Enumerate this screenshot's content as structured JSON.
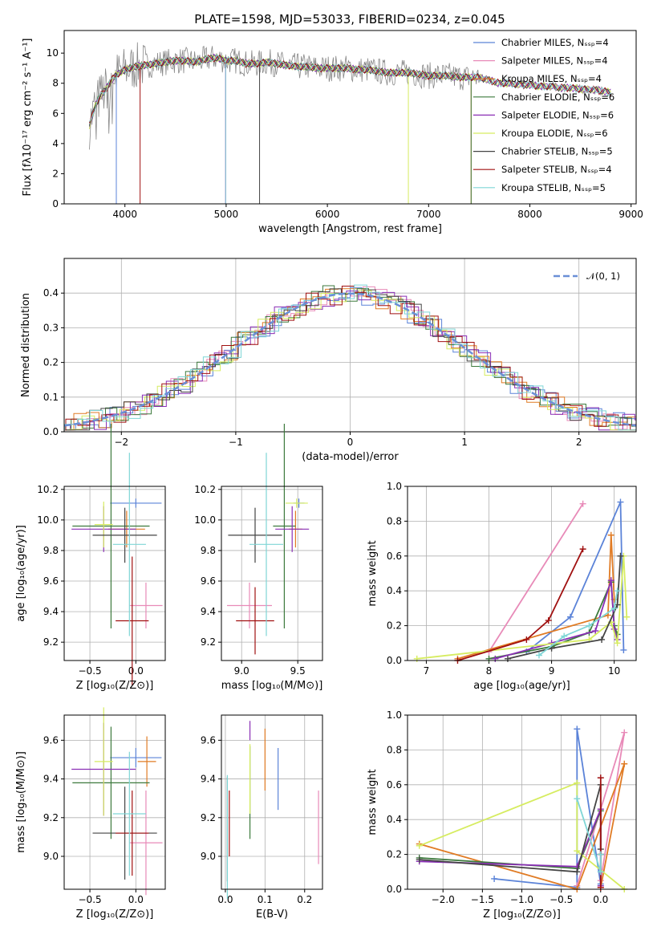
{
  "title": "PLATE=1598, MJD=53033, FIBERID=0234, z=0.045",
  "colors": [
    "#5b83d8",
    "#e88ab8",
    "#e07b24",
    "#3d7a3d",
    "#8a2fb5",
    "#d6ec60",
    "#444444",
    "#a01010",
    "#7fd6d6"
  ],
  "chart_data": [
    {
      "id": "spectrum",
      "type": "line",
      "xlabel": "wavelength [Angstrom, rest frame]",
      "ylabel": "Flux [fλ10⁻¹⁷ erg cm⁻² s⁻¹ A⁻¹]",
      "xlim": [
        3400,
        9050
      ],
      "ylim": [
        0,
        11.5
      ],
      "xticks": [
        4000,
        5000,
        6000,
        7000,
        8000,
        9000
      ],
      "yticks": [
        0,
        2,
        4,
        6,
        8,
        10
      ],
      "grid": false,
      "legend_position": "right",
      "legend": [
        "Chabrier MILES, Nₛₛₚ=4",
        "Salpeter MILES, Nₛₛₚ=4",
        "Kroupa MILES, Nₛₛₚ=4",
        "Chabrier ELODIE, Nₛₛₚ=6",
        "Salpeter ELODIE, Nₛₛₚ=6",
        "Kroupa ELODIE, Nₛₛₚ=6",
        "Chabrier STELIB, Nₛₛₚ=5",
        "Salpeter STELIB, Nₛₛₚ=4",
        "Kroupa STELIB, Nₛₛₚ=5"
      ],
      "data_x": [
        3650,
        3700,
        3750,
        3800,
        3850,
        3900,
        3950,
        4000,
        4100,
        4200,
        4300,
        4400,
        4500,
        4600,
        4700,
        4800,
        4900,
        5000,
        5100,
        5200,
        5300,
        5400,
        5500,
        5600,
        5700,
        5800,
        5900,
        6000,
        6100,
        6200,
        6300,
        6400,
        6500,
        6600,
        6700,
        6800,
        6900,
        7000,
        7100,
        7200,
        7300,
        7400,
        7500,
        7600,
        7700,
        7800,
        7900,
        8000,
        8100,
        8200,
        8300,
        8400,
        8500,
        8600,
        8700,
        8800
      ],
      "data_y": [
        5.2,
        6.4,
        7.1,
        7.5,
        8.0,
        8.5,
        8.7,
        8.9,
        9.1,
        9.2,
        9.3,
        9.4,
        9.5,
        9.5,
        9.4,
        9.6,
        9.7,
        9.5,
        9.5,
        9.3,
        9.3,
        9.4,
        9.3,
        9.2,
        9.1,
        9.1,
        9.0,
        9.0,
        9.0,
        9.0,
        8.9,
        8.9,
        8.8,
        8.7,
        8.7,
        8.7,
        8.6,
        8.5,
        8.5,
        8.5,
        8.4,
        8.4,
        8.4,
        8.2,
        8.0,
        8.0,
        7.9,
        7.9,
        7.8,
        7.8,
        7.7,
        7.7,
        7.6,
        7.6,
        7.5,
        7.4
      ]
    },
    {
      "id": "residuals",
      "type": "bar",
      "xlabel": "(data-model)/error",
      "ylabel": "Normed distribution",
      "xlim": [
        -2.5,
        2.5
      ],
      "ylim": [
        0,
        0.5
      ],
      "xticks": [
        -2,
        -1,
        0,
        1,
        2
      ],
      "yticks": [
        0.0,
        0.1,
        0.2,
        0.3,
        0.4
      ],
      "grid": true,
      "legend": [
        "𝒩(0, 1)"
      ],
      "legend_position": "top-right"
    },
    {
      "id": "age-vs-Z",
      "type": "scatter",
      "xlabel": "Z [log₁₀(Z/Z⊙)]",
      "ylabel": "age  [log₁₀(age/yr)]",
      "xlim": [
        -0.78,
        0.32
      ],
      "ylim": [
        9.08,
        10.22
      ],
      "xticks": [
        -0.5,
        0.0
      ],
      "yticks": [
        9.2,
        9.4,
        9.6,
        9.8,
        10.0,
        10.2
      ],
      "grid": true,
      "points": [
        {
          "x": 0.0,
          "y": 10.11,
          "xerr": 0.28,
          "yerr": 0.03
        },
        {
          "x": 0.11,
          "y": 9.44,
          "xerr": 0.18,
          "yerr": 0.15
        },
        {
          "x": -0.1,
          "y": 9.94,
          "xerr": 0.2,
          "yerr": 0.12
        },
        {
          "x": -0.27,
          "y": 9.96,
          "xerr": 0.42,
          "yerr": 0.67
        },
        {
          "x": -0.35,
          "y": 9.94,
          "xerr": 0.35,
          "yerr": 0.15
        },
        {
          "x": -0.35,
          "y": 9.97,
          "xerr": 0.1,
          "yerr": 0.15
        },
        {
          "x": -0.12,
          "y": 9.9,
          "xerr": 0.35,
          "yerr": 0.18
        },
        {
          "x": -0.04,
          "y": 9.34,
          "xerr": 0.18,
          "yerr": 0.42
        },
        {
          "x": -0.07,
          "y": 9.84,
          "xerr": 0.18,
          "yerr": 0.6
        }
      ]
    },
    {
      "id": "age-vs-mass",
      "type": "scatter",
      "xlabel": "mass [log₁₀(M/M⊙)]",
      "ylabel": "",
      "xlim": [
        8.82,
        9.72
      ],
      "ylim": [
        9.08,
        10.22
      ],
      "xticks": [
        9.0,
        9.5
      ],
      "yticks": [
        9.2,
        9.4,
        9.6,
        9.8,
        10.0,
        10.2
      ],
      "grid": true,
      "points": [
        {
          "x": 9.51,
          "y": 10.11,
          "xerr": 0.05,
          "yerr": 0.03
        },
        {
          "x": 9.07,
          "y": 9.44,
          "xerr": 0.2,
          "yerr": 0.15
        },
        {
          "x": 9.48,
          "y": 9.94,
          "xerr": 0.06,
          "yerr": 0.12
        },
        {
          "x": 9.38,
          "y": 9.96,
          "xerr": 0.1,
          "yerr": 0.67
        },
        {
          "x": 9.45,
          "y": 9.94,
          "xerr": 0.15,
          "yerr": 0.15
        },
        {
          "x": 9.49,
          "y": 10.11,
          "xerr": 0.1,
          "yerr": 0.03
        },
        {
          "x": 9.12,
          "y": 9.9,
          "xerr": 0.24,
          "yerr": 0.18
        },
        {
          "x": 9.12,
          "y": 9.34,
          "xerr": 0.17,
          "yerr": 0.22
        },
        {
          "x": 9.22,
          "y": 9.84,
          "xerr": 0.15,
          "yerr": 0.6
        }
      ]
    },
    {
      "id": "mass-weight-vs-age",
      "type": "line",
      "xlabel": "age  [log₁₀(age/yr)]",
      "ylabel": "mass weight",
      "xlim": [
        6.7,
        10.35
      ],
      "ylim": [
        0,
        1.0
      ],
      "xticks": [
        7,
        8,
        9,
        10
      ],
      "yticks": [
        0.0,
        0.2,
        0.4,
        0.6,
        0.8,
        1.0
      ],
      "grid": true,
      "series": [
        {
          "x": [
            8.6,
            9.3,
            10.1,
            10.15
          ],
          "y": [
            0.05,
            0.25,
            0.91,
            0.06
          ]
        },
        {
          "x": [
            8.0,
            9.5
          ],
          "y": [
            0.05,
            0.9
          ]
        },
        {
          "x": [
            7.5,
            9.9,
            9.95,
            10.0
          ],
          "y": [
            0.01,
            0.26,
            0.72,
            0.35
          ]
        },
        {
          "x": [
            8.0,
            9.0,
            9.6,
            9.95,
            10.0,
            10.05
          ],
          "y": [
            0.01,
            0.08,
            0.16,
            0.45,
            0.2,
            0.15
          ]
        },
        {
          "x": [
            8.1,
            9.0,
            9.7,
            9.95,
            10.0,
            10.05
          ],
          "y": [
            0.01,
            0.1,
            0.17,
            0.46,
            0.18,
            0.12
          ]
        },
        {
          "x": [
            6.85,
            9.6,
            9.95,
            10.05,
            10.15,
            10.2
          ],
          "y": [
            0.01,
            0.12,
            0.22,
            0.1,
            0.6,
            0.25
          ]
        },
        {
          "x": [
            8.3,
            9.0,
            9.8,
            10.05,
            10.1
          ],
          "y": [
            0.01,
            0.07,
            0.12,
            0.32,
            0.6
          ]
        },
        {
          "x": [
            7.5,
            8.6,
            8.95,
            9.5
          ],
          "y": [
            0.0,
            0.12,
            0.23,
            0.64
          ]
        },
        {
          "x": [
            8.8,
            9.2,
            9.6,
            10.0,
            10.05
          ],
          "y": [
            0.03,
            0.14,
            0.2,
            0.3,
            0.4
          ]
        }
      ]
    },
    {
      "id": "mass-vs-Z",
      "type": "scatter",
      "xlabel": "Z [log₁₀(Z/Z⊙)]",
      "ylabel": "mass [log₁₀(M/M⊙)]",
      "xlim": [
        -0.78,
        0.32
      ],
      "ylim": [
        8.83,
        9.73
      ],
      "xticks": [
        -0.5,
        0.0
      ],
      "yticks": [
        9.0,
        9.2,
        9.4,
        9.6
      ],
      "grid": true,
      "points": [
        {
          "x": 0.0,
          "y": 9.51,
          "xerr": 0.28,
          "yerr": 0.05
        },
        {
          "x": 0.11,
          "y": 9.07,
          "xerr": 0.18,
          "yerr": 0.27
        },
        {
          "x": 0.12,
          "y": 9.49,
          "xerr": 0.1,
          "yerr": 0.13
        },
        {
          "x": -0.27,
          "y": 9.38,
          "xerr": 0.42,
          "yerr": 0.29
        },
        {
          "x": -0.35,
          "y": 9.45,
          "xerr": 0.35,
          "yerr": 0.24
        },
        {
          "x": -0.35,
          "y": 9.49,
          "xerr": 0.1,
          "yerr": 0.28
        },
        {
          "x": -0.12,
          "y": 9.12,
          "xerr": 0.35,
          "yerr": 0.24
        },
        {
          "x": -0.04,
          "y": 9.12,
          "xerr": 0.18,
          "yerr": 0.22
        },
        {
          "x": -0.07,
          "y": 9.22,
          "xerr": 0.18,
          "yerr": 0.32
        }
      ]
    },
    {
      "id": "mass-vs-EBV",
      "type": "scatter",
      "xlabel": "E(B-V)",
      "ylabel": "",
      "xlim": [
        -0.01,
        0.245
      ],
      "ylim": [
        8.83,
        9.73
      ],
      "xticks": [
        0.0,
        0.1,
        0.2
      ],
      "yticks": [
        9.0,
        9.2,
        9.4,
        9.6
      ],
      "grid": true,
      "points": [
        {
          "x": 0.133,
          "y": 9.4,
          "xerr": 0,
          "yerr": 0.16
        },
        {
          "x": 0.235,
          "y": 9.15,
          "xerr": 0,
          "yerr": 0.19
        },
        {
          "x": 0.1,
          "y": 9.5,
          "xerr": 0,
          "yerr": 0.16
        },
        {
          "x": 0.062,
          "y": 9.33,
          "xerr": 0,
          "yerr": 0.24
        },
        {
          "x": 0.062,
          "y": 9.65,
          "xerr": 0,
          "yerr": 0.05
        },
        {
          "x": 0.062,
          "y": 9.4,
          "xerr": 0,
          "yerr": 0.18
        },
        {
          "x": 0.005,
          "y": 9.14,
          "xerr": 0,
          "yerr": 0.27
        },
        {
          "x": 0.01,
          "y": 9.17,
          "xerr": 0,
          "yerr": 0.17
        },
        {
          "x": 0.005,
          "y": 9.1,
          "xerr": 0,
          "yerr": 0.32
        }
      ]
    },
    {
      "id": "mass-weight-vs-Z",
      "type": "line",
      "xlabel": "Z [log₁₀(Z/Z⊙)]",
      "ylabel": "mass weight",
      "xlim": [
        -2.45,
        0.45
      ],
      "ylim": [
        0,
        1.0
      ],
      "xticks": [
        -2.0,
        -1.5,
        -1.0,
        -0.5,
        0.0
      ],
      "yticks": [
        0.0,
        0.2,
        0.4,
        0.6,
        0.8,
        1.0
      ],
      "grid": true,
      "series": [
        {
          "x": [
            -1.35,
            -0.3,
            -0.3,
            0.0
          ],
          "y": [
            0.06,
            0.01,
            0.92,
            0.03
          ]
        },
        {
          "x": [
            -0.3,
            0.3,
            0.0
          ],
          "y": [
            0.02,
            0.9,
            0.05
          ]
        },
        {
          "x": [
            -2.3,
            -0.3,
            0.3,
            0.0
          ],
          "y": [
            0.26,
            0.0,
            0.72,
            0.01
          ]
        },
        {
          "x": [
            -2.3,
            -0.3,
            0.0,
            0.0
          ],
          "y": [
            0.18,
            0.12,
            0.45,
            0.2
          ]
        },
        {
          "x": [
            -2.3,
            -0.3,
            0.0,
            0.0
          ],
          "y": [
            0.16,
            0.13,
            0.46,
            0.02
          ]
        },
        {
          "x": [
            -2.3,
            -0.3,
            -0.3,
            0.3
          ],
          "y": [
            0.25,
            0.61,
            0.22,
            0.0
          ]
        },
        {
          "x": [
            -2.3,
            -0.3,
            0.0,
            0.0
          ],
          "y": [
            0.17,
            0.1,
            0.6,
            0.23
          ]
        },
        {
          "x": [
            0.0,
            0.0,
            0.0
          ],
          "y": [
            0.64,
            0.2,
            0.01
          ]
        },
        {
          "x": [
            -0.3,
            0.0,
            0.0
          ],
          "y": [
            0.52,
            0.1,
            0.2
          ]
        }
      ]
    }
  ]
}
